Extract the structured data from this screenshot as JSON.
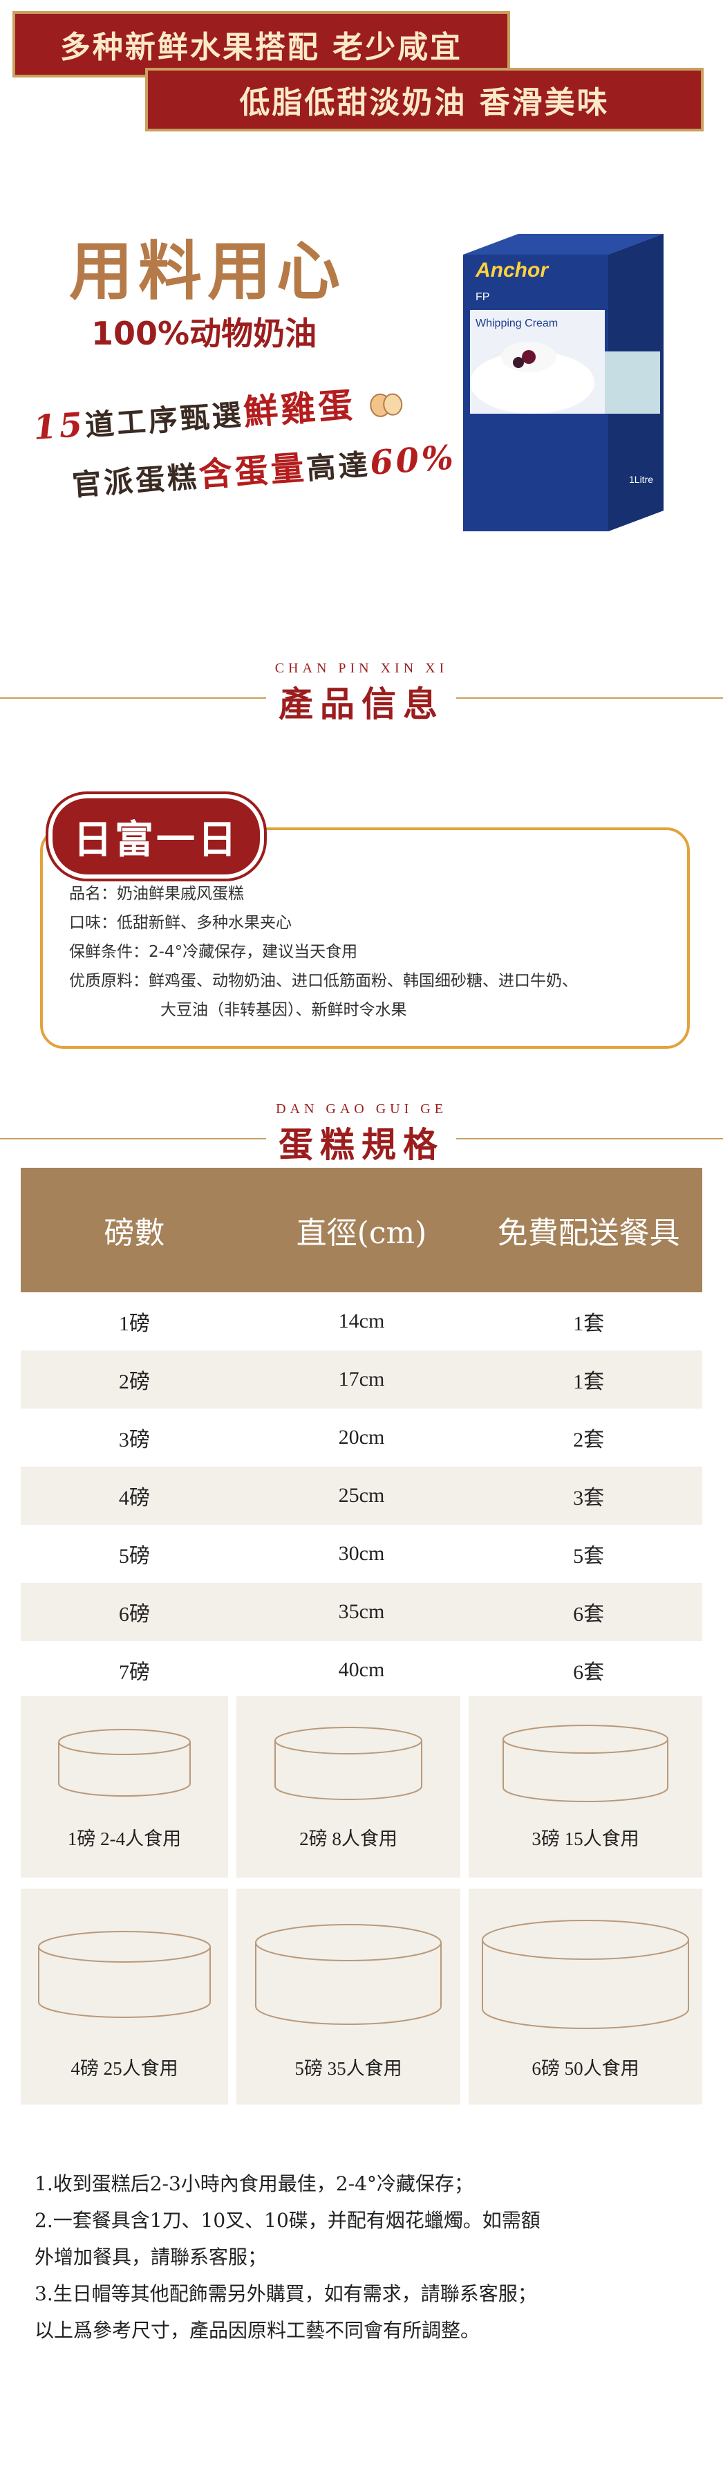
{
  "banner": {
    "line1": "多种新鲜水果搭配 老少咸宜",
    "line2": "低脂低甜淡奶油 香滑美味"
  },
  "intro": {
    "title": "用料用心",
    "subtitle": "100%动物奶油",
    "slogan1_a": "15",
    "slogan1_b": "道工序甄選",
    "slogan1_c": "鮮雞蛋",
    "slogan2_a": "官派蛋糕",
    "slogan2_b": "含蛋量",
    "slogan2_c": "高達",
    "slogan2_d": "60%",
    "carton_brand": "Anchor",
    "carton_fp": "FP",
    "carton_label": "Whipping Cream",
    "carton_volume": "1Litre"
  },
  "section1": {
    "pinyin": "CHAN PIN XIN XI",
    "title": "產品信息"
  },
  "info": {
    "badge": "日富一日",
    "lines": [
      "品名：奶油鲜果戚风蛋糕",
      "口味：低甜新鲜、多种水果夹心",
      "保鲜条件：2-4°冷藏保存，建议当天食用",
      "优质原料：鲜鸡蛋、动物奶油、进口低筋面粉、韩国细砂糖、进口牛奶、",
      "大豆油（非转基因）、新鲜时令水果"
    ]
  },
  "section2": {
    "pinyin": "DAN GAO GUI GE",
    "title": "蛋糕規格"
  },
  "table": {
    "headers": [
      "磅數",
      "直徑(cm)",
      "免費配送餐具"
    ],
    "rows": [
      [
        "1磅",
        "14cm",
        "1套"
      ],
      [
        "2磅",
        "17cm",
        "1套"
      ],
      [
        "3磅",
        "20cm",
        "2套"
      ],
      [
        "4磅",
        "25cm",
        "3套"
      ],
      [
        "5磅",
        "30cm",
        "5套"
      ],
      [
        "6磅",
        "35cm",
        "6套"
      ],
      [
        "7磅",
        "40cm",
        "6套"
      ]
    ]
  },
  "sizes": [
    "1磅 2-4人食用",
    "2磅 8人食用",
    "3磅 15人食用",
    "4磅 25人食用",
    "5磅 35人食用",
    "6磅 50人食用"
  ],
  "notes": [
    "1.收到蛋糕后2-3小時內食用最佳，2-4°冷藏保存；",
    "2.一套餐具含1刀、10叉、10碟，并配有烟花蠟燭。如需額",
    "外增加餐具，請聯系客服；",
    "3.生日帽等其他配飾需另外購買，如有需求，請聯系客服；",
    "以上爲參考尺寸，產品因原料工藝不同會有所調整。"
  ],
  "colors": {
    "brand_red": "#9c1d1d",
    "gold": "#c9a060",
    "table_header": "#a5825a",
    "row_alt": "#f3efe9",
    "info_border": "#e2a23c"
  }
}
